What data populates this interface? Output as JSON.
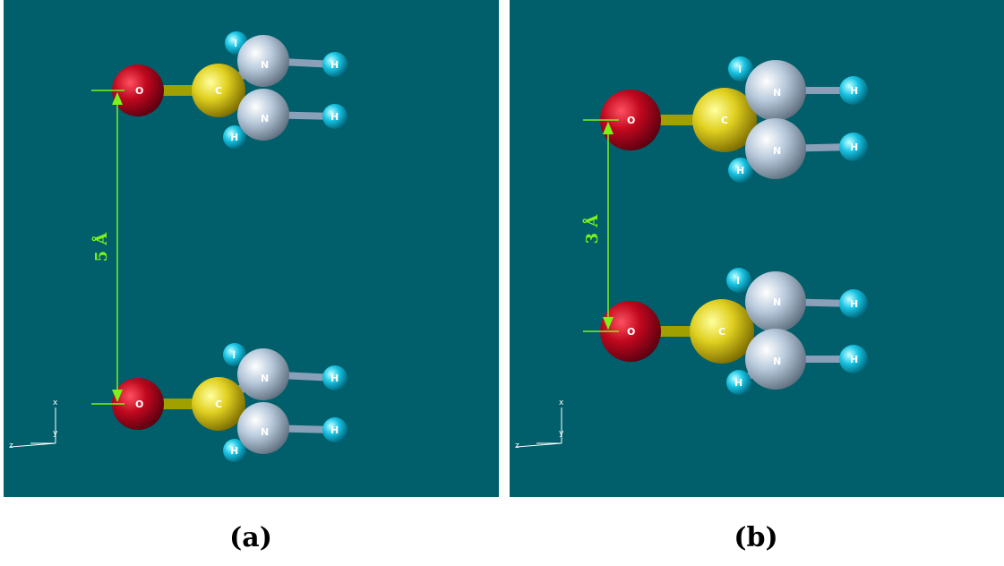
{
  "panels": [
    {
      "id": "a",
      "caption": "(a)",
      "distance_label": "5 Å",
      "molecules": [
        {
          "atoms": {
            "O": "O",
            "C": "C",
            "N_top": "N",
            "N_bottom": "N",
            "H_top": "I",
            "H_right_top": "H",
            "H_right_bottom": "H",
            "H_bottom": "H"
          }
        },
        {
          "atoms": {
            "O": "O",
            "C": "C",
            "N_top": "N",
            "N_bottom": "N",
            "H_top": "I",
            "H_right_top": "H",
            "H_right_bottom": "H",
            "H_bottom": "H"
          }
        }
      ],
      "axes": {
        "x": "x",
        "y": "y",
        "z": "z"
      }
    },
    {
      "id": "b",
      "caption": "(b)",
      "distance_label": "3 Å",
      "molecules": [
        {
          "atoms": {
            "O": "O",
            "C": "C",
            "N_top": "N",
            "N_bottom": "N",
            "H_top": "I",
            "H_right_top": "H",
            "H_right_bottom": "H",
            "H_bottom": "H"
          }
        },
        {
          "atoms": {
            "O": "O",
            "C": "C",
            "N_top": "N",
            "N_bottom": "N",
            "H_top": "I",
            "H_right_top": "H",
            "H_right_bottom": "H",
            "H_bottom": "H"
          }
        }
      ],
      "axes": {
        "x": "x",
        "y": "y",
        "z": "z"
      }
    }
  ],
  "colors": {
    "background": "#005f6b",
    "oxygen": "#b0001a",
    "carbon": "#e6d21e",
    "nitrogen": "#b4c8dc",
    "hydrogen": "#19c8e6",
    "measure": "#7df21a"
  }
}
